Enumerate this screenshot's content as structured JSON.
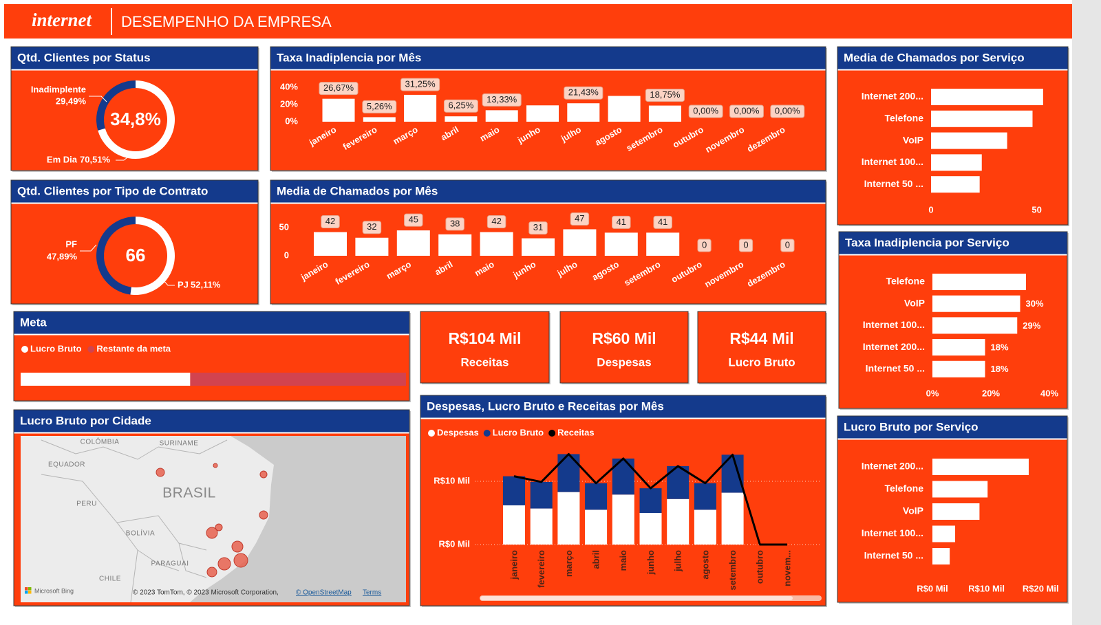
{
  "header": {
    "logo": "internet",
    "title": "DESEMPENHO DA EMPRESA"
  },
  "chart_data": [
    {
      "type": "donut",
      "title": "Qtd. Clientes por Status",
      "center_label": "34,8%",
      "categories": [
        "Inadimplente",
        "Em Dia"
      ],
      "values": [
        29.49,
        70.51
      ],
      "value_labels": [
        "29,49%",
        "70,51%"
      ],
      "colors": [
        "#143a8c",
        "#ffffff"
      ]
    },
    {
      "type": "column",
      "title": "Taxa Inadiplencia por Mês",
      "categories": [
        "janeiro",
        "fevereiro",
        "março",
        "abril",
        "maio",
        "junho",
        "julho",
        "agosto",
        "setembro",
        "outubro",
        "novembro",
        "dezembro"
      ],
      "values": [
        26.67,
        5.26,
        31.25,
        6.25,
        13.33,
        19,
        21.43,
        30,
        18.75,
        0,
        0,
        0
      ],
      "value_labels": [
        "26,67%",
        "5,26%",
        "31,25%",
        "6,25%",
        "13,33%",
        null,
        "21,43%",
        null,
        "18,75%",
        "0,00%",
        "0,00%",
        "0,00%"
      ],
      "color": "#ffffff",
      "ylim": [
        0,
        40
      ],
      "yticks": [
        {
          "value": 0,
          "label": "0%"
        },
        {
          "value": 20,
          "label": "20%"
        },
        {
          "value": 40,
          "label": "40%"
        }
      ]
    },
    {
      "type": "column",
      "title": "Media de Chamados por Mês",
      "categories": [
        "janeiro",
        "fevereiro",
        "março",
        "abril",
        "maio",
        "junho",
        "julho",
        "agosto",
        "setembro",
        "outubro",
        "novembro",
        "dezembro"
      ],
      "values": [
        42,
        32,
        45,
        38,
        42,
        31,
        47,
        41,
        41,
        0,
        0,
        0
      ],
      "color": "#ffffff",
      "ylim": [
        0,
        60
      ],
      "yticks": [
        0,
        50
      ]
    },
    {
      "type": "hbar",
      "title": "Media de Chamados por Serviço",
      "categories": [
        "Internet 200...",
        "Telefone",
        "VoIP",
        "Internet 100...",
        "Internet 50 ..."
      ],
      "values": [
        53,
        48,
        36,
        24,
        23
      ],
      "color": "#ffffff",
      "xlim": [
        0,
        55
      ],
      "xticks": [
        0,
        50
      ]
    },
    {
      "type": "hbar",
      "title": "Taxa Inadiplencia por Serviço",
      "categories": [
        "Telefone",
        "VoIP",
        "Internet 100...",
        "Internet 200...",
        "Internet 50 ..."
      ],
      "values": [
        32,
        30,
        29,
        18,
        18
      ],
      "value_labels": [
        null,
        "30%",
        "29%",
        "18%",
        "18%"
      ],
      "color": "#ffffff",
      "xlim": [
        0,
        40
      ],
      "xticks": [
        {
          "value": 0,
          "label": "0%"
        },
        {
          "value": 20,
          "label": "20%"
        },
        {
          "value": 40,
          "label": "40%"
        }
      ]
    },
    {
      "type": "hbar",
      "title": "Lucro Bruto por Serviço",
      "categories": [
        "Internet 200...",
        "Telefone",
        "VoIP",
        "Internet 100...",
        "Internet 50 ..."
      ],
      "values": [
        17800,
        10200,
        8700,
        4200,
        3200
      ],
      "color": "#ffffff",
      "xlim": [
        0,
        22000
      ],
      "xticks": [
        {
          "value": 0,
          "label": "R$0 Mil"
        },
        {
          "value": 10000,
          "label": "R$10 Mil"
        },
        {
          "value": 20000,
          "label": "R$20 Mil"
        }
      ]
    },
    {
      "type": "donut",
      "title": "Qtd. Clientes por Tipo de Contrato",
      "center_label": "66",
      "categories": [
        "PF",
        "PJ"
      ],
      "values": [
        47.89,
        52.11
      ],
      "value_labels": [
        "47,89%",
        "52,11%"
      ],
      "colors": [
        "#143a8c",
        "#ffffff"
      ]
    },
    {
      "type": "progress",
      "title": "Meta",
      "xlim": [
        0,
        100000
      ],
      "series": [
        {
          "name": "Lucro Bruto",
          "color": "#ffffff",
          "values": [
            44000
          ]
        },
        {
          "name": "Restante da meta",
          "color": "#d2434f",
          "values": [
            56000
          ]
        }
      ]
    },
    {
      "type": "combo",
      "title": "Despesas, Lucro Bruto e Receitas por Mês",
      "categories": [
        "janeiro",
        "fevereiro",
        "março",
        "abril",
        "maio",
        "junho",
        "julho",
        "agosto",
        "setembro",
        "outubro",
        "novem..."
      ],
      "series": [
        {
          "name": "Despesas",
          "color": "#ffffff",
          "values": [
            6200,
            5700,
            8300,
            5500,
            7900,
            5000,
            7200,
            5500,
            8200,
            0,
            0
          ]
        },
        {
          "name": "Lucro Bruto",
          "color": "#143a8c",
          "values": [
            4600,
            4200,
            6000,
            4200,
            5700,
            3900,
            5200,
            4200,
            6000,
            0,
            0
          ]
        },
        {
          "name": "Receitas",
          "color": "#000000",
          "values": [
            10800,
            9900,
            14300,
            9700,
            13600,
            8900,
            12400,
            9700,
            14200,
            0,
            0
          ]
        }
      ],
      "ylim": [
        0,
        15500
      ],
      "yticks": [
        {
          "value": 0,
          "label": "R$0 Mil"
        },
        {
          "value": 10000,
          "label": "R$10 Mil"
        }
      ]
    }
  ],
  "kpis": [
    {
      "value": "R$104 Mil",
      "label": "Receitas"
    },
    {
      "value": "R$60 Mil",
      "label": "Despesas"
    },
    {
      "value": "R$44 Mil",
      "label": "Lucro Bruto"
    }
  ],
  "map": {
    "title": "Lucro Bruto por Cidade",
    "labels": [
      "COLÔMBIA",
      "SURINAME",
      "EQUADOR",
      "BRASIL",
      "PERU",
      "BOLÍVIA",
      "PARAGUAI",
      "CHILE"
    ],
    "bing": "Microsoft Bing",
    "attribution": "© 2023 TomTom, © 2023 Microsoft Corporation,",
    "osm": "© OpenStreetMap",
    "terms": "Terms"
  }
}
